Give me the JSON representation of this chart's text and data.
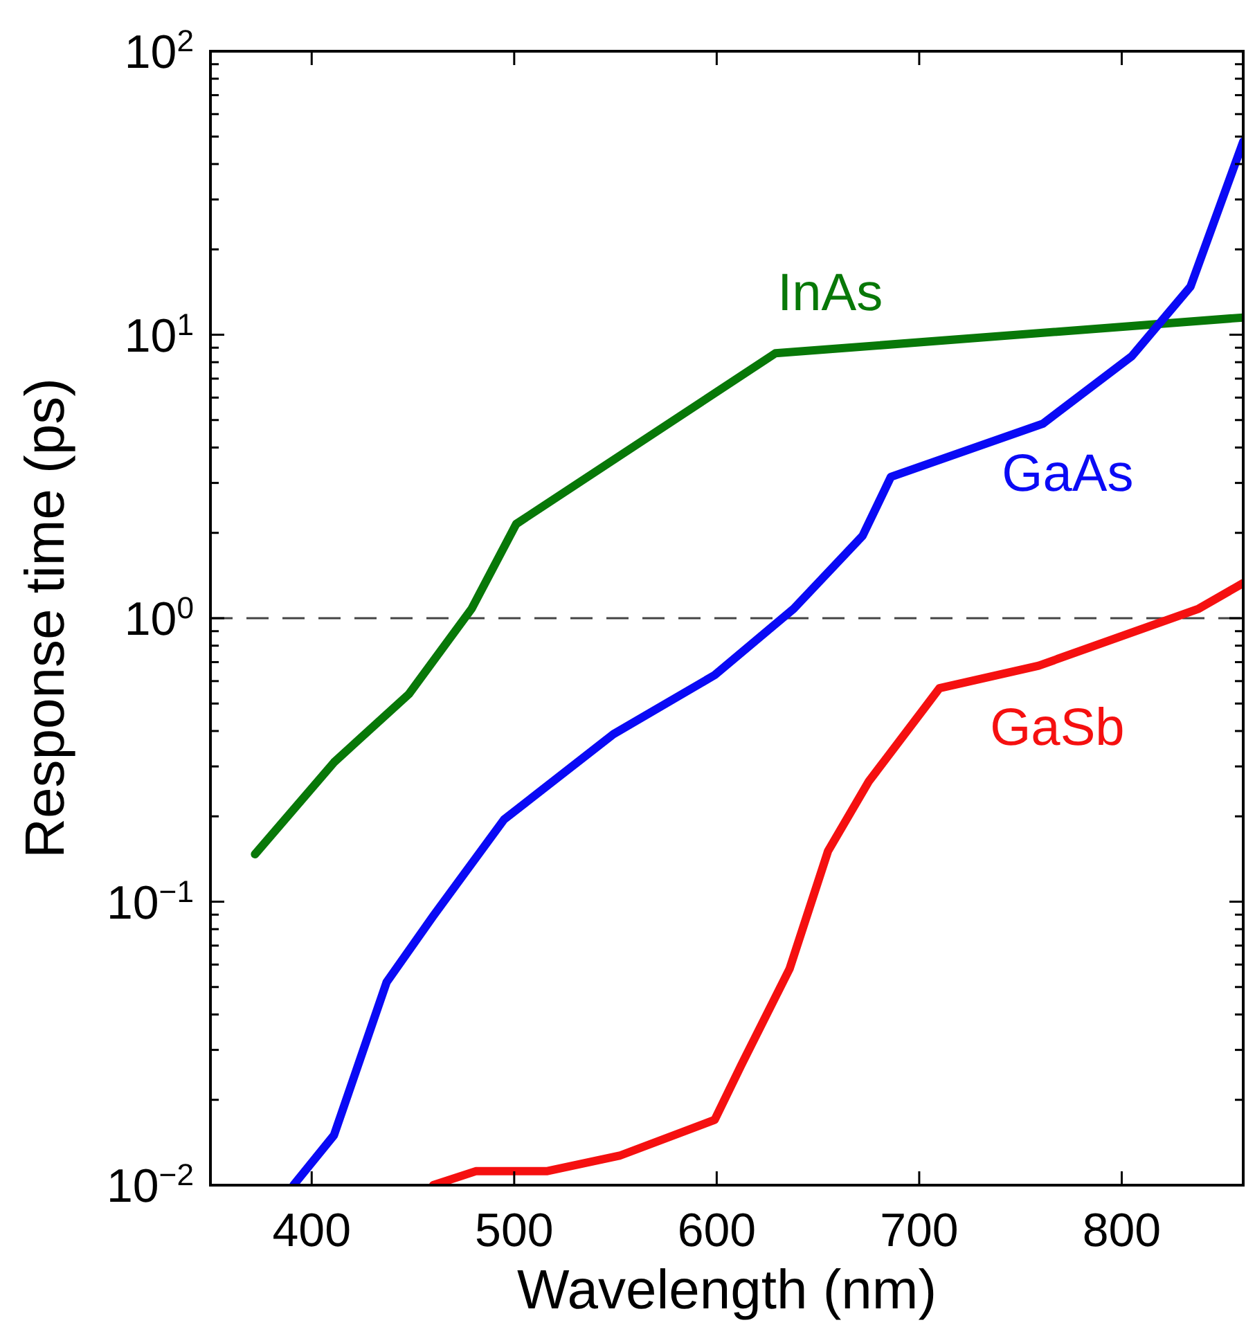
{
  "chart_data": {
    "type": "line",
    "xlabel": "Wavelength (nm)",
    "ylabel": "Response time (ps)",
    "log": "y",
    "grid": false,
    "marker": "none",
    "line_style": "solid",
    "xlim": [
      350,
      860
    ],
    "xticks": [
      400,
      500,
      600,
      700,
      800
    ],
    "ylim": [
      0.01,
      100
    ],
    "yticks": [
      {
        "value": 0.01,
        "label": "10$^{−2}$"
      },
      {
        "value": 0.02,
        "label": null
      },
      {
        "value": 0.03,
        "label": null
      },
      {
        "value": 0.04,
        "label": null
      },
      {
        "value": 0.05,
        "label": null
      },
      {
        "value": 0.06,
        "label": null
      },
      {
        "value": 0.07,
        "label": null
      },
      {
        "value": 0.08,
        "label": null
      },
      {
        "value": 0.09,
        "label": null
      },
      {
        "value": 0.1,
        "label": "10$^{−1}$"
      },
      {
        "value": 0.2,
        "label": null
      },
      {
        "value": 0.3,
        "label": null
      },
      {
        "value": 0.4,
        "label": null
      },
      {
        "value": 0.5,
        "label": null
      },
      {
        "value": 0.6,
        "label": null
      },
      {
        "value": 0.7,
        "label": null
      },
      {
        "value": 0.8,
        "label": null
      },
      {
        "value": 0.9,
        "label": null
      },
      {
        "value": 1,
        "label": "10$^{0}$"
      },
      {
        "value": 2,
        "label": null
      },
      {
        "value": 3,
        "label": null
      },
      {
        "value": 4,
        "label": null
      },
      {
        "value": 5,
        "label": null
      },
      {
        "value": 6,
        "label": null
      },
      {
        "value": 7,
        "label": null
      },
      {
        "value": 8,
        "label": null
      },
      {
        "value": 9,
        "label": null
      },
      {
        "value": 10,
        "label": "10$^{1}$"
      },
      {
        "value": 20,
        "label": null
      },
      {
        "value": 30,
        "label": null
      },
      {
        "value": 40,
        "label": null
      },
      {
        "value": 50,
        "label": null
      },
      {
        "value": 60,
        "label": null
      },
      {
        "value": 70,
        "label": null
      },
      {
        "value": 80,
        "label": null
      },
      {
        "value": 90,
        "label": null
      },
      {
        "value": 100,
        "label": "10$^{2}$"
      }
    ],
    "ref_lines": [
      {
        "axis": "y",
        "value": 1,
        "color": "#444444",
        "line_style": "dashed"
      }
    ],
    "series": [
      {
        "name": "InAs",
        "color": "#087808",
        "x": [
          372,
          411,
          448,
          479,
          501,
          629,
          860
        ],
        "values": [
          0.147,
          0.31,
          0.54,
          1.08,
          2.15,
          8.6,
          11.5
        ]
      },
      {
        "name": "GaAs",
        "color": "#0a0af5",
        "x": [
          391,
          411,
          437,
          460,
          495,
          549,
          599,
          638,
          672,
          686,
          761,
          805,
          834,
          860
        ],
        "values": [
          0.01,
          0.015,
          0.052,
          0.089,
          0.195,
          0.39,
          0.63,
          1.08,
          1.95,
          3.15,
          4.85,
          8.4,
          14.8,
          48
        ]
      },
      {
        "name": "GaSb",
        "color": "#f51010",
        "x": [
          460,
          481,
          516,
          552,
          599,
          612,
          636,
          655,
          675,
          710,
          759,
          838,
          860
        ],
        "values": [
          0.01,
          0.0112,
          0.0112,
          0.0127,
          0.017,
          0.0264,
          0.058,
          0.151,
          0.265,
          0.566,
          0.68,
          1.08,
          1.33
        ]
      }
    ]
  }
}
